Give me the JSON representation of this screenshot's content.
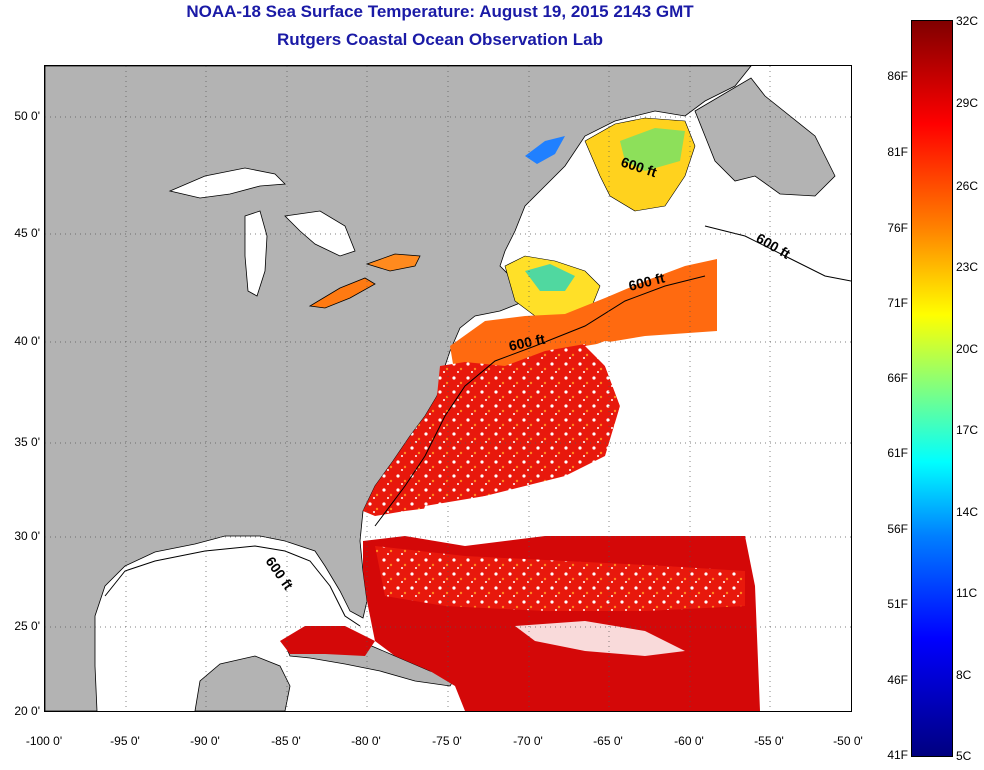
{
  "title": {
    "line1": "NOAA-18 Sea Surface Temperature:  August 19, 2015 2143 GMT",
    "line2": "Rutgers Coastal Ocean Observation Lab"
  },
  "axes": {
    "latitude_ticks": [
      "50 0'",
      "45 0'",
      "40 0'",
      "35 0'",
      "30 0'",
      "25 0'",
      "20 0'"
    ],
    "longitude_ticks": [
      "-100 0'",
      "-95 0'",
      "-90 0'",
      "-85 0'",
      "-80 0'",
      "-75 0'",
      "-70 0'",
      "-65 0'",
      "-60 0'",
      "-55 0'",
      "-50 0'"
    ]
  },
  "colorbar": {
    "celsius_labels": [
      "32C",
      "29C",
      "26C",
      "23C",
      "20C",
      "17C",
      "14C",
      "11C",
      "8C",
      "5C"
    ],
    "fahrenheit_labels": [
      "86F",
      "81F",
      "76F",
      "71F",
      "66F",
      "61F",
      "56F",
      "51F",
      "46F",
      "41F"
    ]
  },
  "contour_labels": [
    "600 ft",
    "600 ft",
    "600 ft",
    "600 ft",
    "600 ft"
  ],
  "colors": {
    "land": "#b3b3b3",
    "cloud_nodata": "#ffffff",
    "warm_sst": "#e8180c",
    "hot_sst": "#d40808",
    "mid_sst": "#ff6a10",
    "cool_sst": "#ffd21e",
    "title_blue": "#1a1aa6"
  }
}
